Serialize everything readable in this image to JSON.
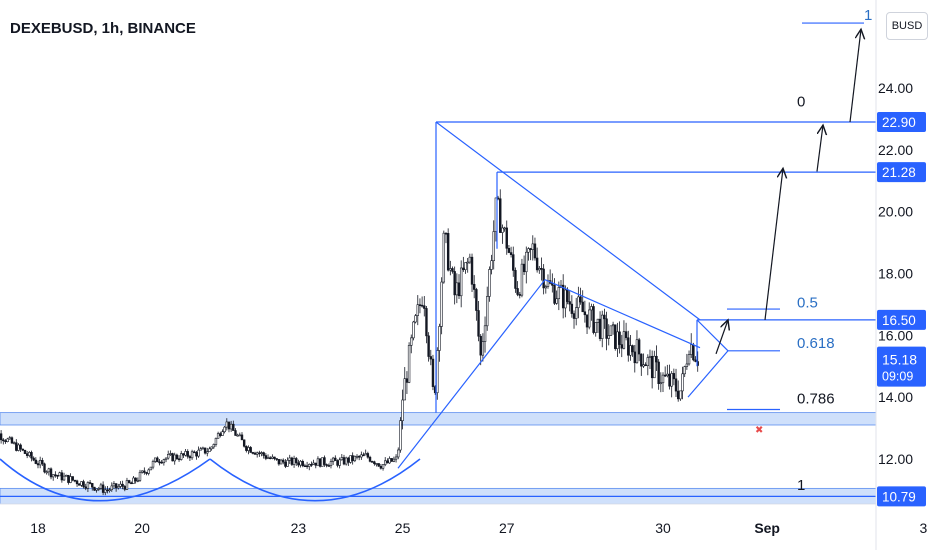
{
  "header": {
    "title": "DEXEBUSD, 1h, BINANCE",
    "currency_button": "BUSD"
  },
  "colors": {
    "up": "#131722",
    "down": "#131722",
    "drawing": "#2962ff",
    "fib_text": "#2a6fc4",
    "zone": "#cfe0fb",
    "stop": "#e84b4b",
    "price_tag": "#2962ff"
  },
  "chart_data": {
    "type": "candlestick",
    "title": "DEXEBUSD, 1h, BINANCE",
    "x_axis_labels": [
      "18",
      "20",
      "23",
      "25",
      "27",
      "30",
      "Sep",
      "3"
    ],
    "x_axis_day_positions": [
      18,
      20,
      23,
      25,
      27,
      30,
      32,
      35
    ],
    "y_axis_ticks": [
      12.0,
      14.0,
      16.0,
      18.0,
      20.0,
      22.0,
      24.0
    ],
    "y_axis_labels": [
      "12.00",
      "14.00",
      "16.00",
      "18.00",
      "20.00",
      "22.00",
      "24.00"
    ],
    "ylim": [
      10.2,
      25.9
    ],
    "price_tags": [
      {
        "label": "22.90",
        "value": 22.9
      },
      {
        "label": "21.28",
        "value": 21.28
      },
      {
        "label": "16.50",
        "value": 16.5
      },
      {
        "label": "10.79",
        "value": 10.79
      }
    ],
    "current_price": {
      "label": "15.18",
      "value": 15.18,
      "countdown": "09:09"
    },
    "fib_levels": [
      {
        "label": "1",
        "value": 26.1
      },
      {
        "label": "0",
        "value": 22.9
      },
      {
        "label": "0.5",
        "value": 16.7
      },
      {
        "label": "0.618",
        "value": 15.5
      },
      {
        "label": "0.786",
        "value": 13.6
      },
      {
        "label": "1",
        "value": 10.8
      }
    ],
    "support_zones": [
      {
        "top": 13.5,
        "bottom": 13.1
      },
      {
        "top": 11.05,
        "bottom": 10.55
      }
    ],
    "anchors": [
      [
        17.0,
        13.1
      ],
      [
        17.5,
        12.5
      ],
      [
        18.3,
        11.5
      ],
      [
        19.3,
        11.0
      ],
      [
        19.8,
        11.2
      ],
      [
        20.3,
        12.0
      ],
      [
        20.8,
        12.1
      ],
      [
        21.3,
        12.3
      ],
      [
        21.6,
        13.2
      ],
      [
        22.0,
        12.4
      ],
      [
        22.6,
        11.9
      ],
      [
        23.3,
        11.9
      ],
      [
        23.8,
        11.9
      ],
      [
        24.3,
        12.1
      ],
      [
        24.6,
        11.8
      ],
      [
        24.9,
        12.0
      ],
      [
        25.0,
        14.0
      ],
      [
        25.2,
        16.0
      ],
      [
        25.4,
        17.5
      ],
      [
        25.6,
        13.8
      ],
      [
        25.8,
        19.2
      ],
      [
        26.0,
        17.3
      ],
      [
        26.3,
        18.5
      ],
      [
        26.5,
        15.3
      ],
      [
        26.8,
        20.2
      ],
      [
        27.0,
        19.0
      ],
      [
        27.2,
        17.5
      ],
      [
        27.5,
        18.8
      ],
      [
        27.8,
        17.6
      ],
      [
        28.5,
        16.7
      ],
      [
        29.0,
        16.0
      ],
      [
        29.5,
        15.5
      ],
      [
        30.0,
        14.6
      ],
      [
        30.35,
        14.2
      ],
      [
        30.5,
        15.8
      ],
      [
        30.7,
        15.2
      ]
    ]
  }
}
